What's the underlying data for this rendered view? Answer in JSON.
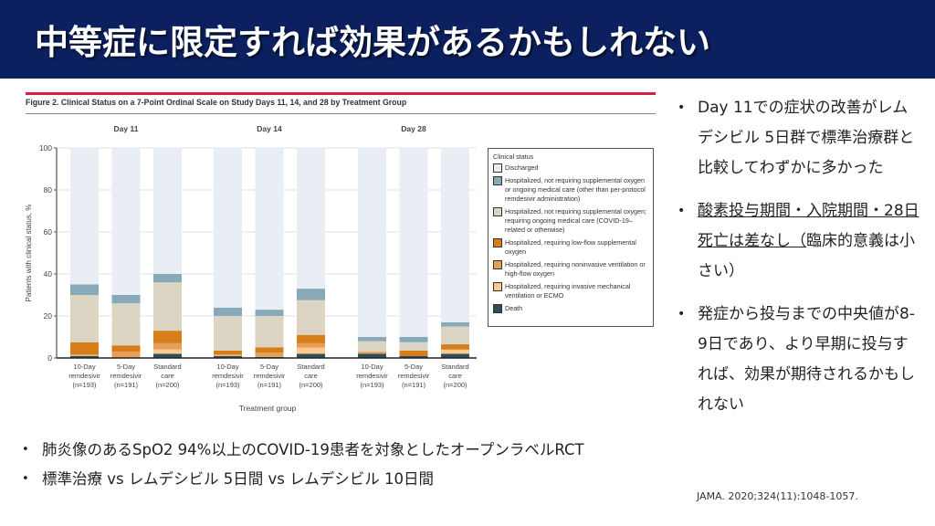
{
  "header": {
    "title": "中等症に限定すれば効果があるかもしれない"
  },
  "figure": {
    "caption": "Figure 2. Clinical Status on a 7-Point Ordinal Scale on Study Days 11, 14, and 28 by Treatment Group"
  },
  "chart_data": {
    "type": "bar",
    "stacked": true,
    "title": "Figure 2. Clinical Status on a 7-Point Ordinal Scale on Study Days 11, 14, and 28 by Treatment Group",
    "xlabel": "Treatment group",
    "ylabel": "Patients with clinical status, %",
    "ylim": [
      0,
      100
    ],
    "yticks": [
      0,
      20,
      40,
      60,
      80,
      100
    ],
    "grid": true,
    "panels": [
      "Day 11",
      "Day 14",
      "Day 28"
    ],
    "categories": [
      [
        "10-Day",
        "remdesivir",
        "(n=193)"
      ],
      [
        "5-Day",
        "remdesivir",
        "(n=191)"
      ],
      [
        "Standard",
        "care",
        "(n=200)"
      ]
    ],
    "legend_title": "Clinical status",
    "legend_position": "right",
    "series": [
      {
        "name": "Death",
        "color": "#2d4f5c",
        "values": [
          [
            1,
            0,
            2
          ],
          [
            1,
            0.5,
            2
          ],
          [
            2,
            1,
            2
          ]
        ]
      },
      {
        "name": "Hospitalized, requiring invasive mechanical ventilation or ECMO",
        "color": "#fdc98e",
        "values": [
          [
            0.5,
            0,
            2
          ],
          [
            0.5,
            0,
            3
          ],
          [
            0,
            0,
            2
          ]
        ]
      },
      {
        "name": "Hospitalized, requiring noninvasive ventilation or high-flow oxygen",
        "color": "#e69f58",
        "values": [
          [
            0,
            3,
            3
          ],
          [
            0,
            2,
            2
          ],
          [
            1,
            0,
            0
          ]
        ]
      },
      {
        "name": "Hospitalized, requiring low-flow supplemental oxygen",
        "color": "#d67f1a",
        "values": [
          [
            6,
            3,
            6
          ],
          [
            2,
            2.5,
            4
          ],
          [
            0,
            2.5,
            2.5
          ]
        ]
      },
      {
        "name": "Hospitalized, not requiring supplemental oxygen; requiring ongoing medical care (COVID-19-related or otherwise)",
        "color": "#dcd5c4",
        "values": [
          [
            22.5,
            20,
            23
          ],
          [
            16.5,
            15,
            16.5
          ],
          [
            5,
            4,
            8.5
          ]
        ]
      },
      {
        "name": "Hospitalized, not requiring supplemental oxygen or ongoing medical care (other than per-protocol remdesivir administration)",
        "color": "#87a9b8",
        "values": [
          [
            5,
            4,
            4
          ],
          [
            4,
            3,
            5.5
          ],
          [
            2,
            2.5,
            2
          ]
        ]
      },
      {
        "name": "Discharged",
        "color": "#e8eef3",
        "values": [
          [
            65,
            70,
            60
          ],
          [
            76,
            77,
            67
          ],
          [
            90,
            90,
            83
          ]
        ]
      }
    ]
  },
  "legend": {
    "title": "Clinical status",
    "items": [
      {
        "label": "Discharged",
        "color": "#e8eef3"
      },
      {
        "label": "Hospitalized, not requiring supplemental oxygen or ongoing medical care (other than per-protocol remdesivir administration)",
        "color": "#87a9b8"
      },
      {
        "label": "Hospitalized, not requiring supplemental oxygen; requiring ongoing medical care (COVID-19–related or otherwise)",
        "color": "#dcd5c4"
      },
      {
        "label": "Hospitalized, requiring low-flow supplemental oxygen",
        "color": "#d67f1a"
      },
      {
        "label": "Hospitalized, requiring noninvasive ventilation or high-flow oxygen",
        "color": "#e69f58"
      },
      {
        "label": "Hospitalized, requiring invasive mechanical ventilation or ECMO",
        "color": "#fdc98e"
      },
      {
        "label": "Death",
        "color": "#2d4f5c"
      }
    ]
  },
  "right_bullets": [
    {
      "text": "Day 11での症状の改善がレムデシビル 5日群で標準治療群と比較してわずかに多かった"
    },
    {
      "underlined": "酸素投与期間・入院期間・28日死亡は差なし（",
      "text": "臨床的意義は小さい）"
    },
    {
      "text": "発症から投与までの中央値が8-9日であり、より早期に投与すれば、効果が期待されるかもしれない"
    }
  ],
  "bottom_bullets": [
    "肺炎像のあるSpO2 94%以上のCOVID-19患者を対象としたオープンラベルRCT",
    "標準治療 vs レムデシビル 5日間 vs レムデシビル 10日間"
  ],
  "citation": "JAMA. 2020;324(11):1048-1057."
}
